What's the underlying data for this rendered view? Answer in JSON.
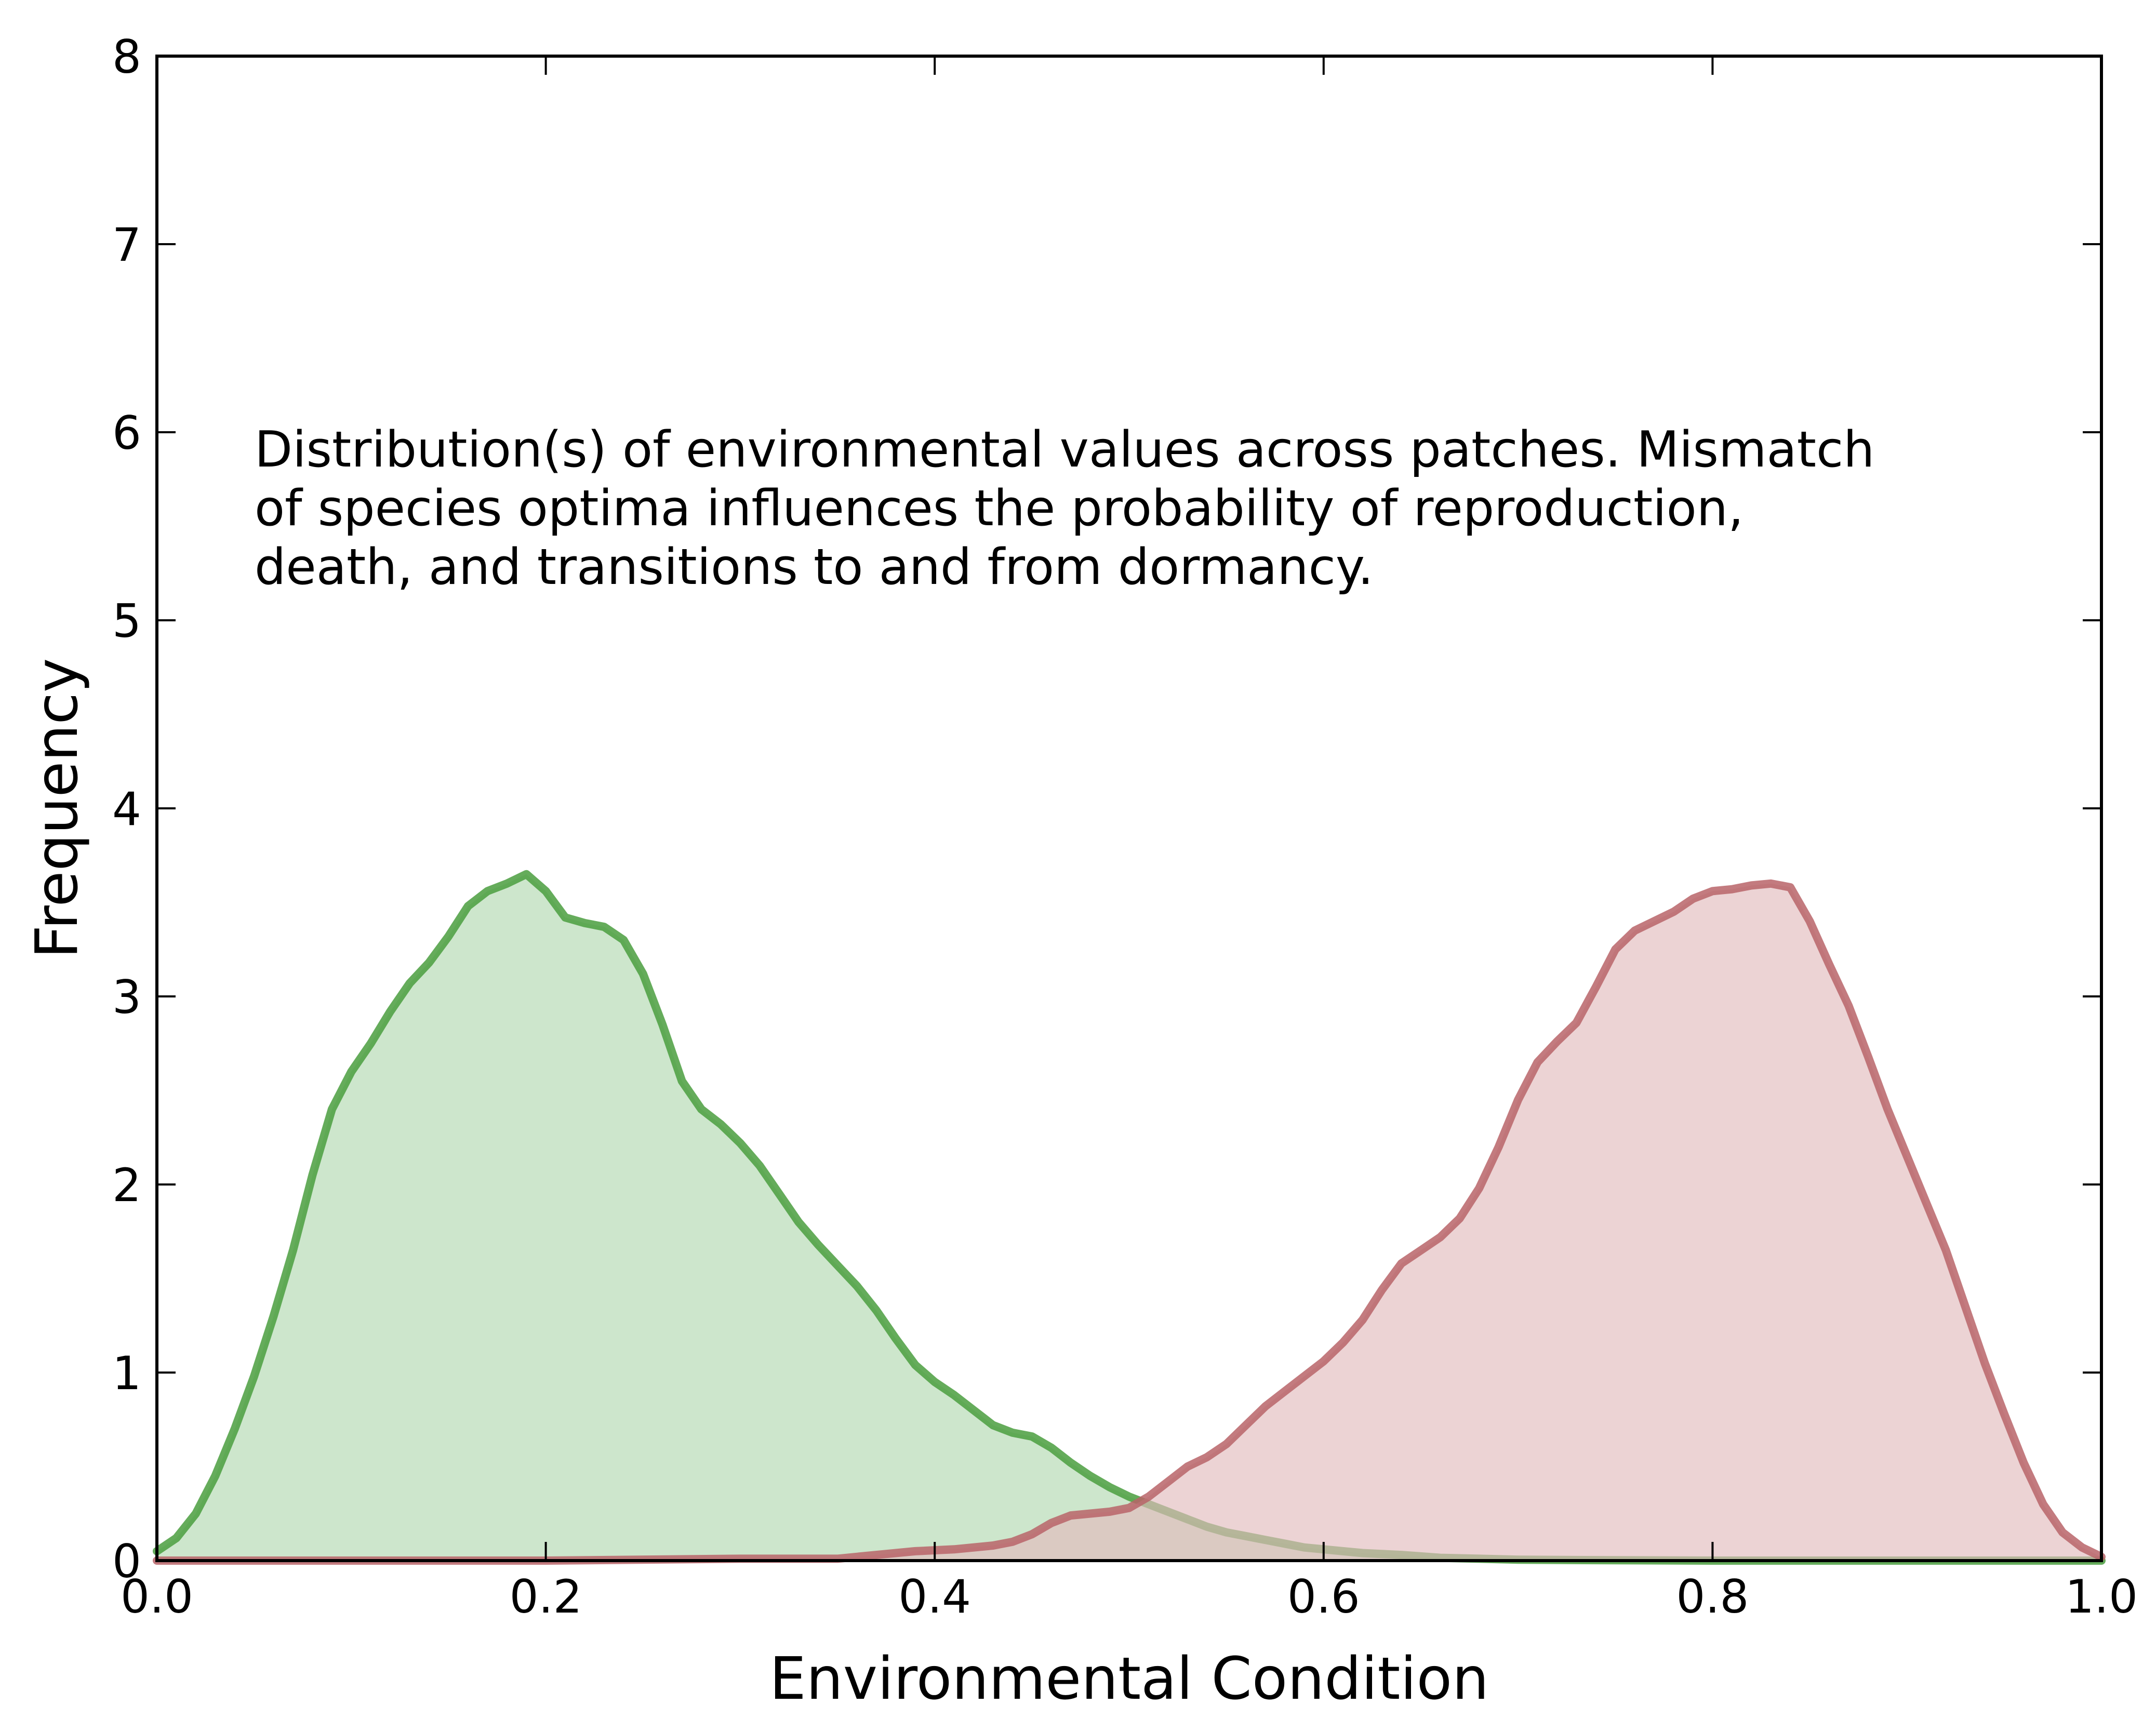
{
  "chart_data": {
    "type": "area",
    "title": "",
    "xlabel": "Environmental Condition",
    "ylabel": "Frequency",
    "xlim": [
      0.0,
      1.0
    ],
    "ylim": [
      0,
      8
    ],
    "grid": false,
    "xticks": [
      "0.0",
      "0.2",
      "0.4",
      "0.6",
      "0.8",
      "1.0"
    ],
    "yticks": [
      "0",
      "1",
      "2",
      "3",
      "4",
      "5",
      "6",
      "7",
      "8"
    ],
    "annotation": [
      "Distribution(s) of environmental values across patches. Mismatch",
      "of species optima influences the probability of reproduction,",
      "death, and transitions to and from dormancy."
    ],
    "series": [
      {
        "color": "#4a9e3e",
        "fill": "#b2d8b0",
        "points": [
          [
            0.0,
            0.05
          ],
          [
            0.01,
            0.12
          ],
          [
            0.02,
            0.25
          ],
          [
            0.03,
            0.45
          ],
          [
            0.04,
            0.7
          ],
          [
            0.05,
            0.98
          ],
          [
            0.06,
            1.3
          ],
          [
            0.07,
            1.65
          ],
          [
            0.08,
            2.05
          ],
          [
            0.09,
            2.4
          ],
          [
            0.1,
            2.6
          ],
          [
            0.11,
            2.75
          ],
          [
            0.12,
            2.92
          ],
          [
            0.13,
            3.07
          ],
          [
            0.14,
            3.18
          ],
          [
            0.15,
            3.32
          ],
          [
            0.16,
            3.48
          ],
          [
            0.17,
            3.56
          ],
          [
            0.18,
            3.6
          ],
          [
            0.19,
            3.65
          ],
          [
            0.2,
            3.56
          ],
          [
            0.21,
            3.42
          ],
          [
            0.22,
            3.39
          ],
          [
            0.23,
            3.37
          ],
          [
            0.24,
            3.3
          ],
          [
            0.25,
            3.12
          ],
          [
            0.26,
            2.85
          ],
          [
            0.27,
            2.55
          ],
          [
            0.28,
            2.4
          ],
          [
            0.29,
            2.32
          ],
          [
            0.3,
            2.22
          ],
          [
            0.31,
            2.1
          ],
          [
            0.32,
            1.95
          ],
          [
            0.33,
            1.8
          ],
          [
            0.34,
            1.68
          ],
          [
            0.35,
            1.57
          ],
          [
            0.36,
            1.46
          ],
          [
            0.37,
            1.33
          ],
          [
            0.38,
            1.18
          ],
          [
            0.39,
            1.04
          ],
          [
            0.4,
            0.95
          ],
          [
            0.41,
            0.88
          ],
          [
            0.42,
            0.8
          ],
          [
            0.43,
            0.72
          ],
          [
            0.44,
            0.68
          ],
          [
            0.45,
            0.66
          ],
          [
            0.46,
            0.6
          ],
          [
            0.47,
            0.52
          ],
          [
            0.48,
            0.45
          ],
          [
            0.49,
            0.39
          ],
          [
            0.5,
            0.34
          ],
          [
            0.51,
            0.3
          ],
          [
            0.52,
            0.26
          ],
          [
            0.53,
            0.22
          ],
          [
            0.54,
            0.18
          ],
          [
            0.55,
            0.15
          ],
          [
            0.56,
            0.13
          ],
          [
            0.57,
            0.11
          ],
          [
            0.58,
            0.09
          ],
          [
            0.59,
            0.07
          ],
          [
            0.6,
            0.06
          ],
          [
            0.62,
            0.04
          ],
          [
            0.64,
            0.03
          ],
          [
            0.66,
            0.015
          ],
          [
            0.68,
            0.01
          ],
          [
            0.7,
            0.005
          ],
          [
            0.75,
            0.002
          ],
          [
            0.8,
            0.0
          ],
          [
            0.9,
            0.0
          ],
          [
            1.0,
            0.0
          ]
        ]
      },
      {
        "color": "#b86468",
        "fill": "#e2bcbd",
        "points": [
          [
            0.0,
            0.0
          ],
          [
            0.2,
            0.0
          ],
          [
            0.3,
            0.01
          ],
          [
            0.35,
            0.01
          ],
          [
            0.37,
            0.03
          ],
          [
            0.39,
            0.05
          ],
          [
            0.41,
            0.06
          ],
          [
            0.43,
            0.08
          ],
          [
            0.44,
            0.1
          ],
          [
            0.45,
            0.14
          ],
          [
            0.46,
            0.2
          ],
          [
            0.47,
            0.24
          ],
          [
            0.48,
            0.25
          ],
          [
            0.49,
            0.26
          ],
          [
            0.5,
            0.28
          ],
          [
            0.51,
            0.34
          ],
          [
            0.52,
            0.42
          ],
          [
            0.53,
            0.5
          ],
          [
            0.54,
            0.55
          ],
          [
            0.55,
            0.62
          ],
          [
            0.56,
            0.72
          ],
          [
            0.57,
            0.82
          ],
          [
            0.58,
            0.9
          ],
          [
            0.59,
            0.98
          ],
          [
            0.6,
            1.06
          ],
          [
            0.61,
            1.16
          ],
          [
            0.62,
            1.28
          ],
          [
            0.63,
            1.44
          ],
          [
            0.64,
            1.58
          ],
          [
            0.65,
            1.65
          ],
          [
            0.66,
            1.72
          ],
          [
            0.67,
            1.82
          ],
          [
            0.68,
            1.98
          ],
          [
            0.69,
            2.2
          ],
          [
            0.7,
            2.45
          ],
          [
            0.71,
            2.65
          ],
          [
            0.72,
            2.76
          ],
          [
            0.73,
            2.86
          ],
          [
            0.74,
            3.05
          ],
          [
            0.75,
            3.25
          ],
          [
            0.76,
            3.35
          ],
          [
            0.77,
            3.4
          ],
          [
            0.78,
            3.45
          ],
          [
            0.79,
            3.52
          ],
          [
            0.8,
            3.56
          ],
          [
            0.81,
            3.57
          ],
          [
            0.82,
            3.59
          ],
          [
            0.83,
            3.6
          ],
          [
            0.84,
            3.58
          ],
          [
            0.85,
            3.4
          ],
          [
            0.86,
            3.17
          ],
          [
            0.87,
            2.95
          ],
          [
            0.88,
            2.68
          ],
          [
            0.89,
            2.4
          ],
          [
            0.9,
            2.15
          ],
          [
            0.91,
            1.9
          ],
          [
            0.92,
            1.65
          ],
          [
            0.93,
            1.35
          ],
          [
            0.94,
            1.05
          ],
          [
            0.95,
            0.78
          ],
          [
            0.96,
            0.52
          ],
          [
            0.97,
            0.3
          ],
          [
            0.98,
            0.15
          ],
          [
            0.99,
            0.07
          ],
          [
            1.0,
            0.02
          ]
        ]
      }
    ]
  }
}
